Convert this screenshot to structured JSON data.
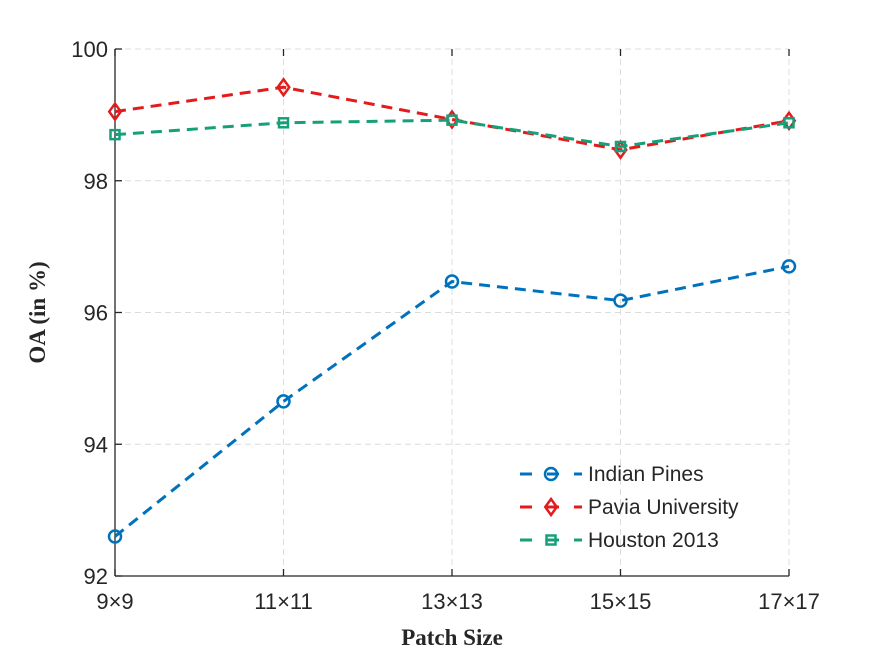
{
  "chart_data": {
    "type": "line",
    "categories": [
      "9×9",
      "11×11",
      "13×13",
      "15×15",
      "17×17"
    ],
    "xlabel": "Patch Size",
    "ylabel": "OA (in %)",
    "ylim": [
      92,
      100
    ],
    "yticks": [
      92,
      94,
      96,
      98,
      100
    ],
    "grid": true,
    "legend_position": "bottom-right",
    "series": [
      {
        "name": "Indian Pines",
        "color": "#0072BD",
        "marker": "circle",
        "values": [
          92.6,
          94.65,
          96.47,
          96.18,
          96.7
        ]
      },
      {
        "name": "Pavia University",
        "color": "#E41A1C",
        "marker": "diamond",
        "values": [
          99.05,
          99.42,
          98.93,
          98.47,
          98.91
        ]
      },
      {
        "name": "Houston 2013",
        "color": "#16A07A",
        "marker": "square",
        "values": [
          98.7,
          98.88,
          98.92,
          98.52,
          98.88
        ]
      }
    ]
  }
}
